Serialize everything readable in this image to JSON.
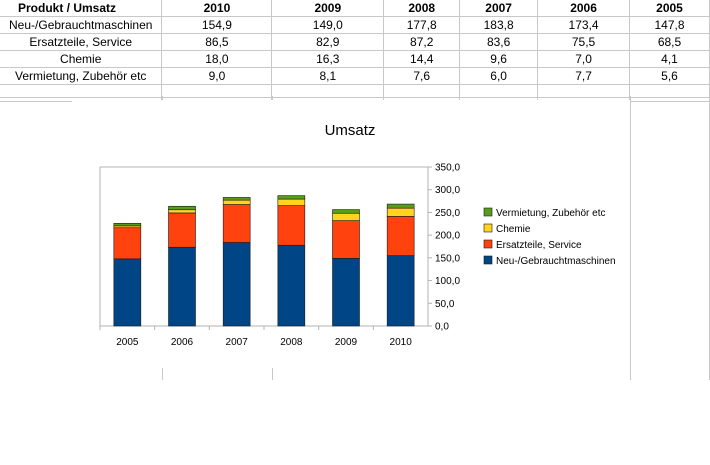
{
  "table": {
    "header": [
      "Produkt / Umsatz",
      "2010",
      "2009",
      "2008",
      "2007",
      "2006",
      "2005"
    ],
    "rows": [
      {
        "label": "Neu-/Gebrauchtmaschinen",
        "cells": [
          "154,9",
          "149,0",
          "177,8",
          "183,8",
          "173,4",
          "147,8"
        ]
      },
      {
        "label": "Ersatzteile, Service",
        "cells": [
          "86,5",
          "82,9",
          "87,2",
          "83,6",
          "75,5",
          "68,5"
        ]
      },
      {
        "label": "Chemie",
        "cells": [
          "18,0",
          "16,3",
          "14,4",
          "9,6",
          "7,0",
          "4,1"
        ]
      },
      {
        "label": "Vermietung, Zubehör etc",
        "cells": [
          "9,0",
          "8,1",
          "7,6",
          "6,0",
          "7,7",
          "5,6"
        ]
      }
    ]
  },
  "chart_data": {
    "type": "bar",
    "stacked": true,
    "title": "Umsatz",
    "categories": [
      "2005",
      "2006",
      "2007",
      "2008",
      "2009",
      "2010"
    ],
    "series": [
      {
        "name": "Neu-/Gebrauchtmaschinen",
        "values": [
          147.8,
          173.4,
          183.8,
          177.8,
          149.0,
          154.9
        ],
        "color": "#004586"
      },
      {
        "name": "Ersatzteile, Service",
        "values": [
          68.5,
          75.5,
          83.6,
          87.2,
          82.9,
          86.5
        ],
        "color": "#ff420e"
      },
      {
        "name": "Chemie",
        "values": [
          4.1,
          7.0,
          9.6,
          14.4,
          16.3,
          18.0
        ],
        "color": "#ffd320"
      },
      {
        "name": "Vermietung, Zubehör etc",
        "values": [
          5.6,
          7.7,
          6.0,
          7.6,
          8.1,
          9.0
        ],
        "color": "#579d1c"
      }
    ],
    "ylim": [
      0,
      350
    ],
    "yticks": [
      "0,0",
      "50,0",
      "100,0",
      "150,0",
      "200,0",
      "250,0",
      "300,0",
      "350,0"
    ],
    "yaxis_side": "right",
    "legend": "right",
    "grid": false
  }
}
